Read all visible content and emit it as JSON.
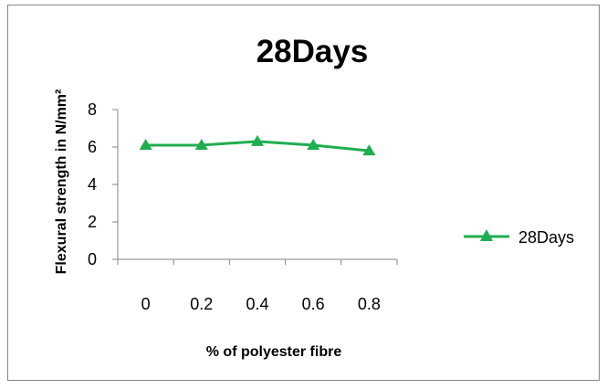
{
  "chart_data": {
    "type": "line",
    "title": "28Days",
    "xlabel": "% of polyester fibre",
    "ylabel": "Flexural strength in N/mm²",
    "categories": [
      "0",
      "0.2",
      "0.4",
      "0.6",
      "0.8"
    ],
    "series": [
      {
        "name": "28Days",
        "values": [
          6.1,
          6.1,
          6.3,
          6.1,
          5.8
        ],
        "color": "#1fae4f",
        "marker": "triangle"
      }
    ],
    "ylim": [
      0,
      8
    ],
    "yticks": [
      "0",
      "2",
      "4",
      "6",
      "8"
    ],
    "grid": false,
    "legend_position": "right"
  }
}
